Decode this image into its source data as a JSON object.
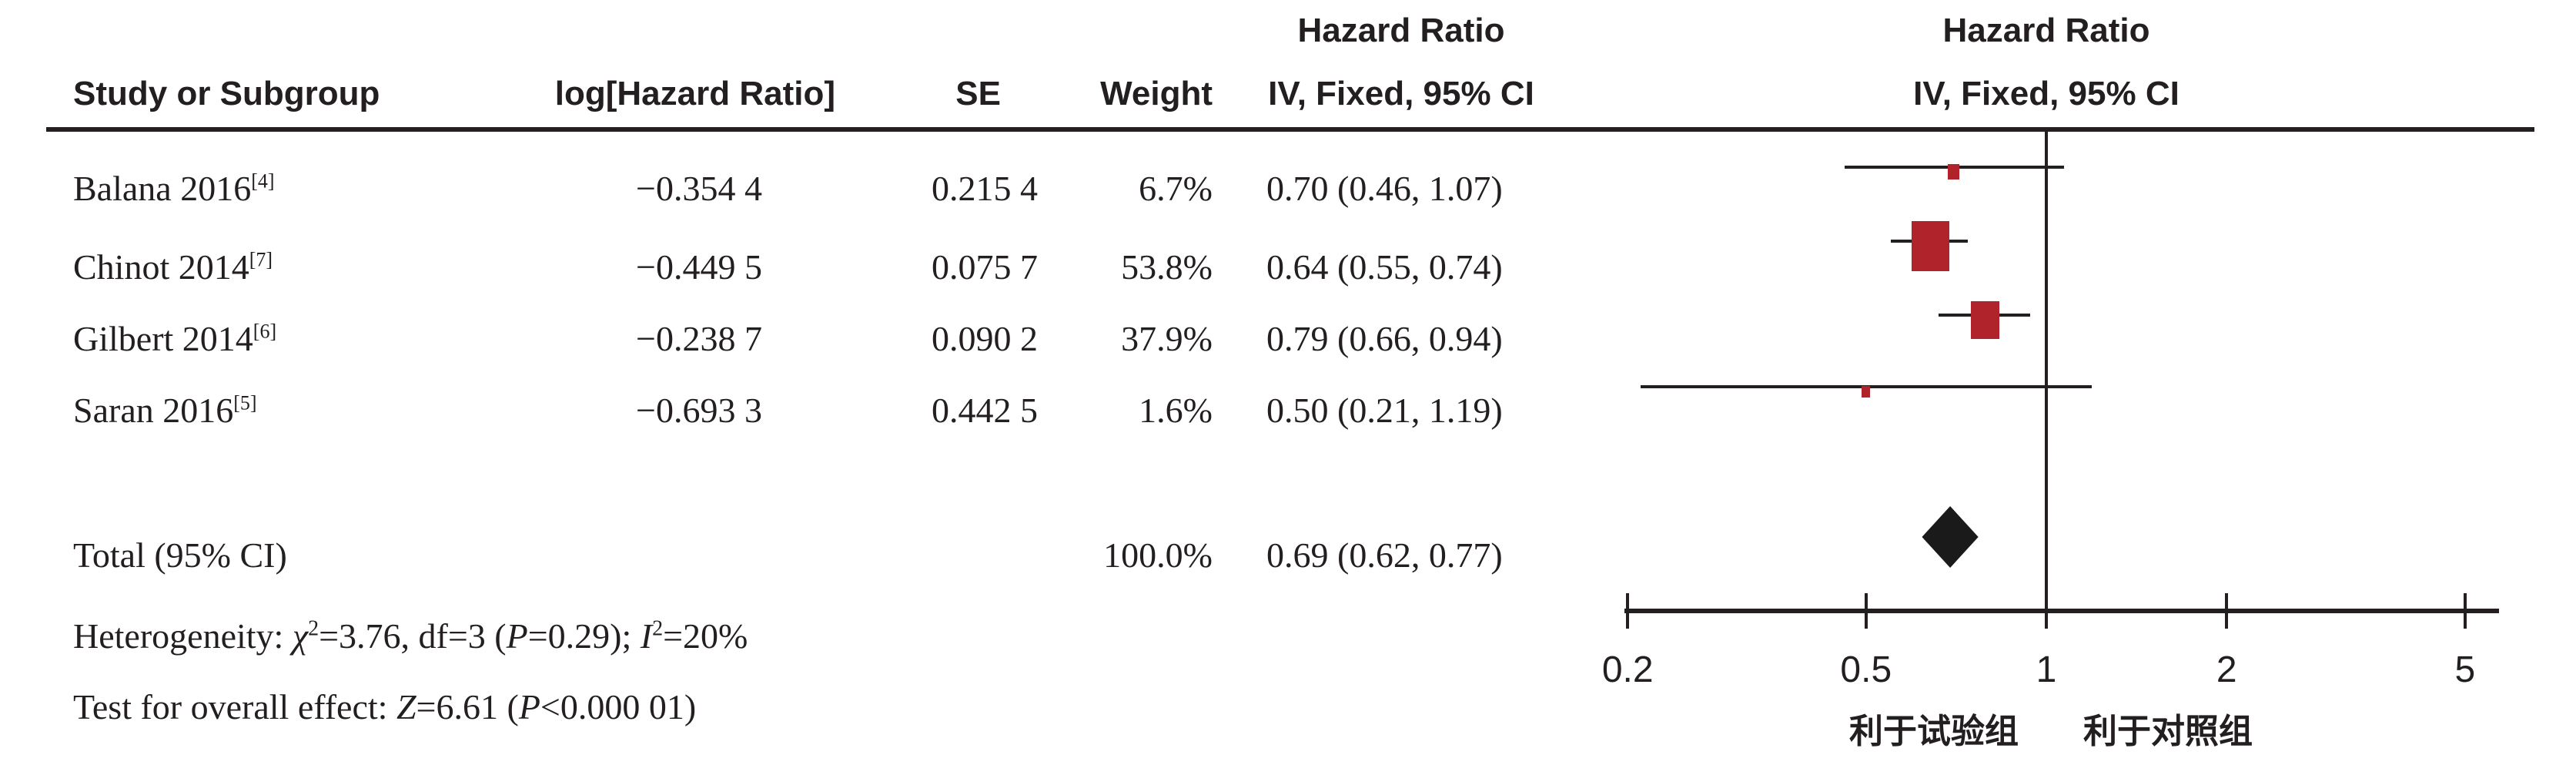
{
  "header": {
    "study": "Study or Subgroup",
    "log_hr": "log[Hazard Ratio]",
    "se": "SE",
    "weight": "Weight",
    "hr_top": "Hazard Ratio",
    "hr_bottom": "IV, Fixed, 95% CI",
    "plot_hr_top": "Hazard Ratio",
    "plot_hr_bottom": "IV, Fixed, 95% CI"
  },
  "chart_data": {
    "type": "forest",
    "effect_measure": "Hazard Ratio",
    "model": "IV, Fixed, 95% CI",
    "axis": {
      "scale": "log",
      "range": [
        0.2,
        5
      ],
      "ticks": [
        {
          "value": 0.2,
          "label": "0.2"
        },
        {
          "value": 0.5,
          "label": "0.5"
        },
        {
          "value": 1,
          "label": "1"
        },
        {
          "value": 2,
          "label": "2"
        },
        {
          "value": 5,
          "label": "5"
        }
      ]
    },
    "studies": [
      {
        "name": "Balana 2016",
        "ref": "[4]",
        "log_hr_text": "−0.354 4",
        "se_text": "0.215 4",
        "weight_text": "6.7%",
        "hr_ci_text": "0.70 (0.46, 1.07)",
        "hr": 0.7,
        "ci_low": 0.46,
        "ci_high": 1.07,
        "weight_pct": 6.7
      },
      {
        "name": "Chinot 2014",
        "ref": "[7]",
        "log_hr_text": "−0.449 5",
        "se_text": "0.075 7",
        "weight_text": "53.8%",
        "hr_ci_text": "0.64 (0.55, 0.74)",
        "hr": 0.64,
        "ci_low": 0.55,
        "ci_high": 0.74,
        "weight_pct": 53.8
      },
      {
        "name": "Gilbert 2014",
        "ref": "[6]",
        "log_hr_text": "−0.238 7",
        "se_text": "0.090 2",
        "weight_text": "37.9%",
        "hr_ci_text": "0.79 (0.66, 0.94)",
        "hr": 0.79,
        "ci_low": 0.66,
        "ci_high": 0.94,
        "weight_pct": 37.9
      },
      {
        "name": "Saran 2016",
        "ref": "[5]",
        "log_hr_text": "−0.693 3",
        "se_text": "0.442 5",
        "weight_text": "1.6%",
        "hr_ci_text": "0.50 (0.21, 1.19)",
        "hr": 0.5,
        "ci_low": 0.21,
        "ci_high": 1.19,
        "weight_pct": 1.6
      }
    ],
    "total": {
      "label": "Total (95% CI)",
      "weight_text": "100.0%",
      "hr_ci_text": "0.69 (0.62, 0.77)",
      "hr": 0.69,
      "ci_low": 0.62,
      "ci_high": 0.77
    },
    "favors_left": "利于试验组",
    "favors_right": "利于对照组"
  },
  "footer": {
    "het_label": "Heterogeneity: ",
    "het_chi": "χ",
    "het_chi_sup": "2",
    "het_eq": "=3.76, df=3 (",
    "het_p": "P",
    "het_mid": "=0.29); ",
    "het_i": "I",
    "het_i_sup": "2",
    "het_tail": "=20%",
    "test_label": "Test for overall effect: ",
    "test_z": "Z",
    "test_eq": "=6.61 (",
    "test_p": "P",
    "test_tail": "<0.000 01)"
  },
  "colors": {
    "marker_red": "#b0232a",
    "diamond_black": "#1a1a1a",
    "line_black": "#231f20"
  }
}
